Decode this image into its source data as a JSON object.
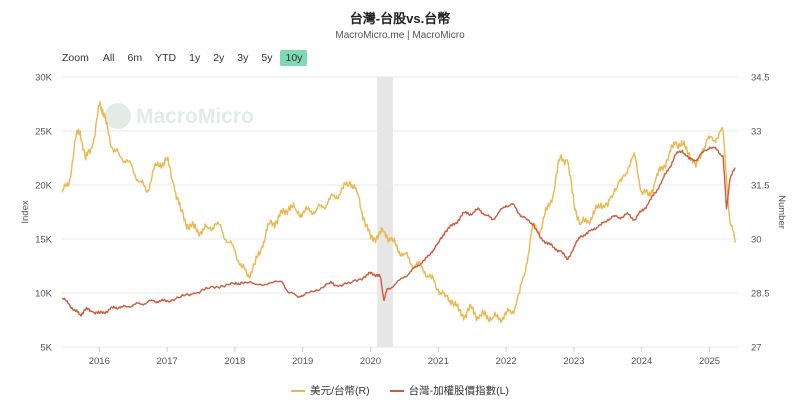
{
  "header": {
    "title": "台灣-台股vs.台幣",
    "subtitle": "MacroMicro.me | MacroMicro"
  },
  "watermark": "MacroMicro",
  "zoom": {
    "label": "Zoom",
    "buttons": [
      "All",
      "6m",
      "YTD",
      "1y",
      "2y",
      "3y",
      "5y",
      "10y"
    ],
    "active": "10y"
  },
  "colors": {
    "taiex": "#cd5c3c",
    "usdtwd": "#eab84f",
    "shade": "#e6e6e6",
    "grid": "#e8e8e8"
  },
  "chart_data": {
    "type": "line",
    "x_ticks": [
      "2016",
      "2017",
      "2018",
      "2019",
      "2020",
      "2021",
      "2022",
      "2023",
      "2024",
      "2025"
    ],
    "x_range": [
      2015.45,
      2025.42
    ],
    "left_axis": {
      "label": "Index",
      "min": 5000,
      "max": 30000,
      "ticks": [
        "5K",
        "10K",
        "15K",
        "20K",
        "25K",
        "30K"
      ]
    },
    "right_axis": {
      "label": "Number",
      "min": 27,
      "max": 34.5,
      "ticks": [
        "27",
        "28.5",
        "30",
        "31.5",
        "33",
        "34.5"
      ]
    },
    "shaded_period": [
      2020.1,
      2020.33
    ],
    "grid": true,
    "legend_position": "bottom-center",
    "series": [
      {
        "name": "美元/台幣(R)",
        "axis": "right",
        "x": [
          2015.45,
          2015.55,
          2015.65,
          2015.72,
          2015.8,
          2015.9,
          2016.0,
          2016.05,
          2016.1,
          2016.2,
          2016.3,
          2016.4,
          2016.5,
          2016.6,
          2016.7,
          2016.8,
          2016.9,
          2017.0,
          2017.1,
          2017.2,
          2017.3,
          2017.4,
          2017.5,
          2017.6,
          2017.7,
          2017.8,
          2017.9,
          2018.0,
          2018.1,
          2018.2,
          2018.3,
          2018.4,
          2018.5,
          2018.6,
          2018.7,
          2018.8,
          2018.9,
          2019.0,
          2019.1,
          2019.2,
          2019.3,
          2019.4,
          2019.5,
          2019.6,
          2019.7,
          2019.8,
          2019.9,
          2020.0,
          2020.1,
          2020.2,
          2020.3,
          2020.4,
          2020.5,
          2020.6,
          2020.7,
          2020.8,
          2020.9,
          2021.0,
          2021.1,
          2021.2,
          2021.3,
          2021.4,
          2021.5,
          2021.6,
          2021.7,
          2021.8,
          2021.9,
          2022.0,
          2022.1,
          2022.2,
          2022.3,
          2022.4,
          2022.5,
          2022.6,
          2022.7,
          2022.8,
          2022.9,
          2023.0,
          2023.1,
          2023.2,
          2023.3,
          2023.4,
          2023.5,
          2023.6,
          2023.7,
          2023.8,
          2023.9,
          2024.0,
          2024.1,
          2024.2,
          2024.3,
          2024.4,
          2024.5,
          2024.6,
          2024.7,
          2024.8,
          2024.9,
          2025.0,
          2025.1,
          2025.2,
          2025.3,
          2025.38
        ],
        "values": [
          31.3,
          31.5,
          32.8,
          33.0,
          32.2,
          32.6,
          33.7,
          33.6,
          33.2,
          32.5,
          32.3,
          32.2,
          31.9,
          31.6,
          31.3,
          31.9,
          32.1,
          32.2,
          31.5,
          30.8,
          30.4,
          30.3,
          30.2,
          30.3,
          30.4,
          30.3,
          29.9,
          29.7,
          29.2,
          29.0,
          29.3,
          29.8,
          30.4,
          30.5,
          30.7,
          30.9,
          30.8,
          30.7,
          30.8,
          30.8,
          30.9,
          31.1,
          31.2,
          31.4,
          31.6,
          31.3,
          30.6,
          30.0,
          30.1,
          30.2,
          30.0,
          29.7,
          29.6,
          29.3,
          29.3,
          29.1,
          28.9,
          28.6,
          28.4,
          28.3,
          28.0,
          27.9,
          28.1,
          27.8,
          27.9,
          27.8,
          27.8,
          27.9,
          28.0,
          28.5,
          29.3,
          30.4,
          30.2,
          30.8,
          31.3,
          32.3,
          32.2,
          31.0,
          30.4,
          30.5,
          30.7,
          31.0,
          30.9,
          31.4,
          31.6,
          32.0,
          32.3,
          31.3,
          31.2,
          31.6,
          32.0,
          32.3,
          32.7,
          32.6,
          32.4,
          32.0,
          32.5,
          32.8,
          32.8,
          33.0,
          30.5,
          29.9
        ]
      },
      {
        "name": "台灣-加權股價指數(L)",
        "axis": "left",
        "x": [
          2015.45,
          2015.55,
          2015.65,
          2015.72,
          2015.8,
          2015.9,
          2016.0,
          2016.1,
          2016.2,
          2016.3,
          2016.4,
          2016.5,
          2016.6,
          2016.7,
          2016.8,
          2016.9,
          2017.0,
          2017.2,
          2017.4,
          2017.6,
          2017.8,
          2018.0,
          2018.1,
          2018.3,
          2018.5,
          2018.7,
          2018.8,
          2018.9,
          2019.0,
          2019.2,
          2019.4,
          2019.5,
          2019.7,
          2019.9,
          2020.0,
          2020.1,
          2020.15,
          2020.2,
          2020.25,
          2020.35,
          2020.5,
          2020.6,
          2020.7,
          2020.8,
          2020.9,
          2021.0,
          2021.1,
          2021.2,
          2021.3,
          2021.4,
          2021.5,
          2021.6,
          2021.7,
          2021.8,
          2021.9,
          2022.0,
          2022.1,
          2022.2,
          2022.3,
          2022.4,
          2022.5,
          2022.6,
          2022.7,
          2022.8,
          2022.9,
          2023.0,
          2023.1,
          2023.2,
          2023.3,
          2023.4,
          2023.5,
          2023.6,
          2023.7,
          2023.8,
          2023.9,
          2024.0,
          2024.1,
          2024.2,
          2024.3,
          2024.4,
          2024.5,
          2024.6,
          2024.7,
          2024.8,
          2024.9,
          2025.0,
          2025.1,
          2025.2,
          2025.25,
          2025.3,
          2025.38
        ],
        "values": [
          9500,
          9000,
          8300,
          8000,
          8500,
          8300,
          8100,
          8300,
          8600,
          8700,
          8700,
          8900,
          9000,
          9100,
          9300,
          9200,
          9300,
          9600,
          10000,
          10400,
          10700,
          10800,
          11000,
          10800,
          10900,
          11000,
          10000,
          9800,
          9700,
          10300,
          10900,
          10700,
          10900,
          11500,
          11800,
          11700,
          11400,
          9300,
          10400,
          10700,
          11500,
          12000,
          12600,
          13000,
          13800,
          14600,
          15700,
          16200,
          16800,
          17500,
          17300,
          17800,
          17200,
          16800,
          17500,
          18100,
          18200,
          17300,
          16800,
          16400,
          15100,
          14700,
          14200,
          13900,
          13100,
          14200,
          15300,
          15500,
          16000,
          16300,
          16800,
          17100,
          17000,
          17300,
          16800,
          17600,
          18300,
          19300,
          20400,
          21500,
          22800,
          23200,
          22400,
          22300,
          23000,
          23500,
          23300,
          22700,
          17800,
          20500,
          21600
        ]
      }
    ]
  },
  "legend": [
    {
      "label": "美元/台幣(R)",
      "series": "usdtwd"
    },
    {
      "label": "台灣-加權股價指數(L)",
      "series": "taiex"
    }
  ]
}
